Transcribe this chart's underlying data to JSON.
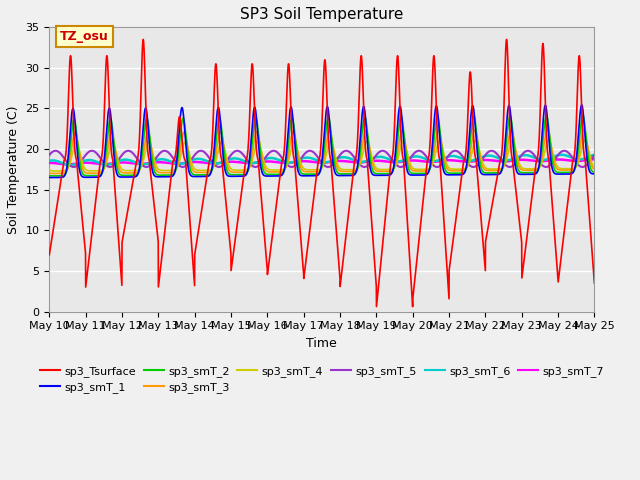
{
  "title": "SP3 Soil Temperature",
  "xlabel": "Time",
  "ylabel": "Soil Temperature (C)",
  "ylim": [
    0,
    35
  ],
  "yticks": [
    0,
    5,
    10,
    15,
    20,
    25,
    30,
    35
  ],
  "annotation_text": "TZ_osu",
  "annotation_color": "#cc0000",
  "annotation_bg": "#ffffcc",
  "annotation_border": "#cc8800",
  "series_colors": {
    "sp3_Tsurface": "#ff0000",
    "sp3_smT_1": "#0000ff",
    "sp3_smT_2": "#00cc00",
    "sp3_smT_3": "#ff9900",
    "sp3_smT_4": "#cccc00",
    "sp3_smT_5": "#9933cc",
    "sp3_smT_6": "#00cccc",
    "sp3_smT_7": "#ff00ff"
  },
  "fig_facecolor": "#f0f0f0",
  "axes_facecolor": "#e8e8e8",
  "grid_color": "#ffffff",
  "figsize": [
    6.4,
    4.8
  ],
  "dpi": 100
}
